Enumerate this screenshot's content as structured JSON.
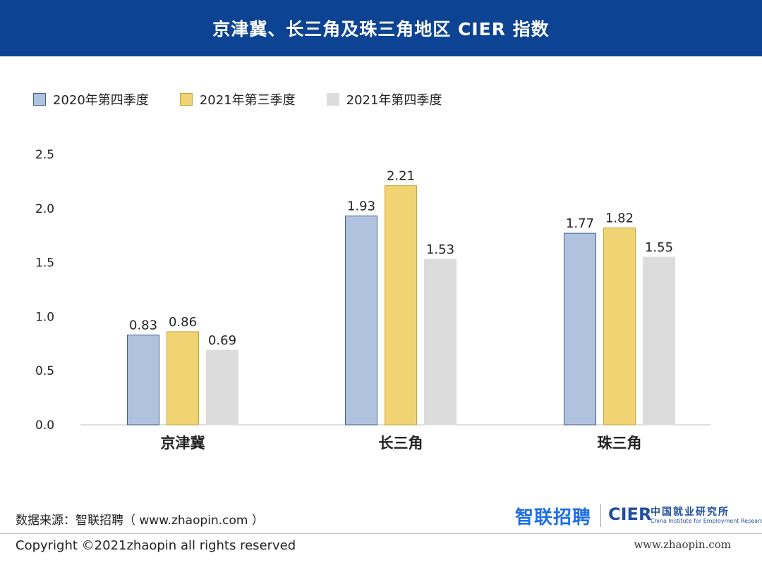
{
  "header": {
    "title": "京津冀、长三角及珠三角地区 CIER 指数"
  },
  "chart_data": {
    "type": "bar",
    "categories": [
      "京津冀",
      "长三角",
      "珠三角"
    ],
    "series": [
      {
        "name": "2020年第四季度",
        "values": [
          0.83,
          1.93,
          1.77
        ],
        "color": "#afc3de",
        "border": "#3f5f8e"
      },
      {
        "name": "2021年第三季度",
        "values": [
          0.86,
          2.21,
          1.82
        ],
        "color": "#f0d373",
        "border": "#c9a43a"
      },
      {
        "name": "2021年第四季度",
        "values": [
          0.69,
          1.53,
          1.55
        ],
        "color": "#dcdcdc",
        "border": "#dcdcdc"
      }
    ],
    "ylim": [
      0,
      2.5
    ],
    "yticks": [
      "0.0",
      "0.5",
      "1.0",
      "1.5",
      "2.0",
      "2.5"
    ],
    "data_labels": [
      [
        "0.83",
        "1.93",
        "1.77"
      ],
      [
        "0.86",
        "2.21",
        "1.82"
      ],
      [
        "0.69",
        "1.53",
        "1.55"
      ]
    ],
    "legend_position": "top-left",
    "grid": false
  },
  "footer": {
    "source": "数据来源：智联招聘（ www.zhaopin.com ）",
    "copyright": "Copyright ©2021zhaopin all rights reserved",
    "url": "www.zhaopin.com"
  },
  "logos": {
    "zhaopin": "智联招聘",
    "cier": "CIER",
    "cier_cn": "中国就业研究所",
    "cier_en": "China Institute for Employment Research"
  }
}
